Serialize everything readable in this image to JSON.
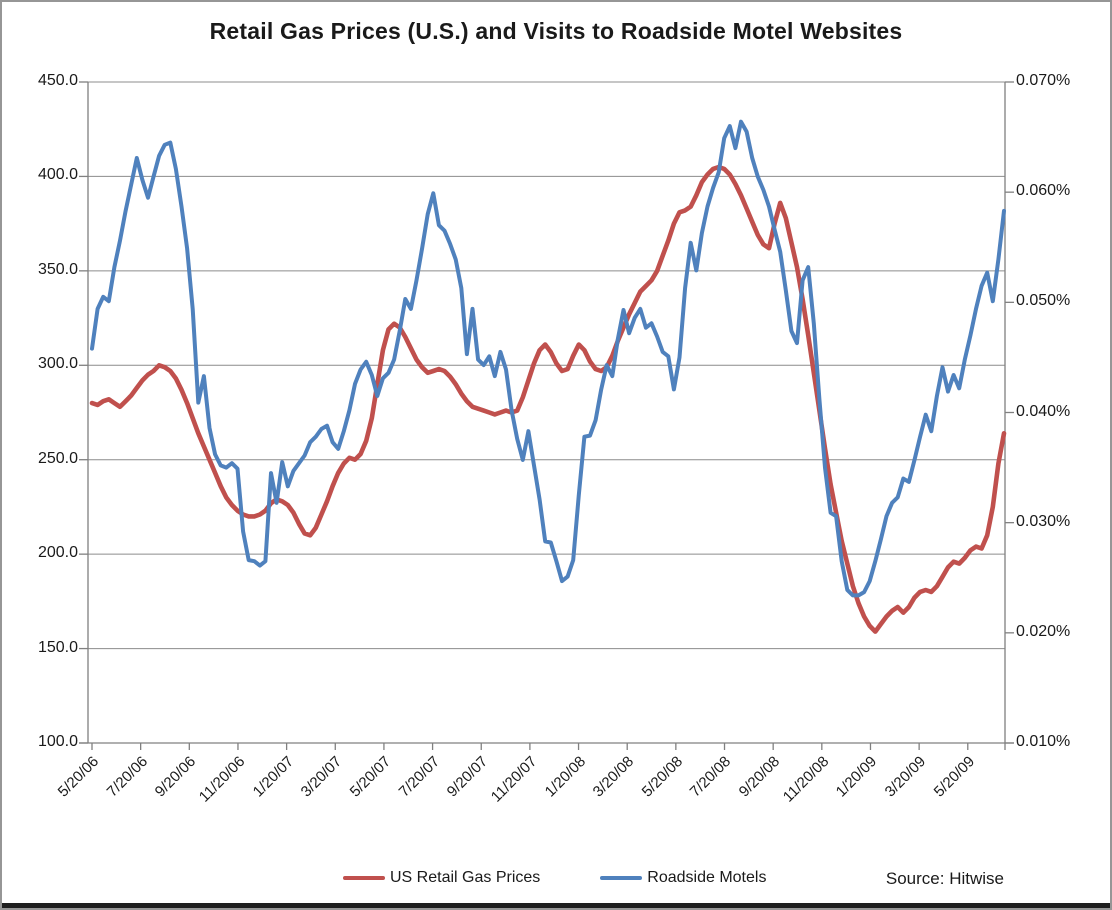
{
  "title": "Retail Gas Prices (U.S.) and Visits to Roadside Motel Websites",
  "source_note": "Source: Hitwise",
  "legend": [
    {
      "label": "US Retail Gas Prices",
      "color": "#C0504D"
    },
    {
      "label": "Roadside Motels",
      "color": "#4F81BD"
    }
  ],
  "chart_data": {
    "type": "line",
    "title": "Retail Gas Prices (U.S.) and Visits to Roadside Motel Websites",
    "source": "Source: Hitwise",
    "legend_position": "bottom",
    "grid": true,
    "gridline_color": "#8C8C8C",
    "axis_color": "#808080",
    "x_axis": {
      "start_label": "5/20/06",
      "frequency": "weekly",
      "tick_labels": [
        "5/20/06",
        "7/20/06",
        "9/20/06",
        "11/20/06",
        "1/20/07",
        "3/20/07",
        "5/20/07",
        "7/20/07",
        "9/20/07",
        "11/20/07",
        "1/20/08",
        "3/20/08",
        "5/20/08",
        "7/20/08",
        "9/20/08",
        "11/20/08",
        "1/20/09",
        "3/20/09",
        "5/20/09"
      ]
    },
    "y_axis_left": {
      "series": "US Retail Gas Prices",
      "min": 100,
      "max": 450,
      "tick_labels": [
        "450.0",
        "400.0",
        "350.0",
        "300.0",
        "250.0",
        "200.0",
        "150.0",
        "100.0"
      ]
    },
    "y_axis_right": {
      "series": "Roadside Motels",
      "unit": "%",
      "min": 0.01,
      "max": 0.07,
      "tick_labels": [
        "0.070%",
        "0.060%",
        "0.050%",
        "0.040%",
        "0.030%",
        "0.020%",
        "0.010%"
      ]
    },
    "series": [
      {
        "name": "US Retail Gas Prices",
        "axis": "left",
        "color": "#C0504D",
        "values": [
          280,
          279,
          281,
          282,
          280,
          278,
          281,
          284,
          288,
          292,
          295,
          297,
          300,
          299,
          297,
          293,
          287,
          280,
          272,
          264,
          257,
          250,
          243,
          236,
          230,
          226,
          223,
          221,
          220,
          220,
          221,
          223,
          227,
          229,
          228,
          226,
          222,
          216,
          211,
          210,
          214,
          221,
          228,
          236,
          243,
          248,
          251,
          250,
          253,
          260,
          272,
          290,
          308,
          319,
          322,
          320,
          315,
          309,
          303,
          299,
          296,
          297,
          298,
          297,
          294,
          290,
          285,
          281,
          278,
          277,
          276,
          275,
          274,
          275,
          276,
          275,
          276,
          283,
          292,
          301,
          308,
          311,
          307,
          301,
          297,
          298,
          305,
          311,
          308,
          302,
          298,
          297,
          299,
          305,
          313,
          320,
          327,
          333,
          339,
          342,
          345,
          350,
          358,
          366,
          375,
          381,
          382,
          384,
          390,
          397,
          401,
          404,
          405,
          404,
          401,
          396,
          390,
          383,
          376,
          369,
          364,
          362,
          375,
          386,
          378,
          365,
          352,
          335,
          316,
          296,
          276,
          256,
          237,
          222,
          207,
          195,
          183,
          174,
          167,
          162,
          159,
          163,
          167,
          170,
          172,
          169,
          172,
          177,
          180,
          181,
          180,
          183,
          188,
          193,
          196,
          195,
          198,
          202,
          204,
          203,
          210,
          225,
          248,
          264
        ]
      },
      {
        "name": "Roadside Motels",
        "axis": "right",
        "color": "#4F81BD",
        "values": [
          0.0458,
          0.0494,
          0.0505,
          0.0501,
          0.0532,
          0.0556,
          0.0583,
          0.0607,
          0.0631,
          0.0611,
          0.0595,
          0.0614,
          0.0633,
          0.0643,
          0.0645,
          0.0621,
          0.0587,
          0.0549,
          0.0494,
          0.0409,
          0.0433,
          0.0386,
          0.0362,
          0.0352,
          0.035,
          0.0354,
          0.0349,
          0.0292,
          0.0266,
          0.0265,
          0.0261,
          0.0265,
          0.0345,
          0.0318,
          0.0355,
          0.0333,
          0.0347,
          0.0354,
          0.0361,
          0.0373,
          0.0378,
          0.0385,
          0.0388,
          0.0373,
          0.0367,
          0.0383,
          0.0402,
          0.0426,
          0.0439,
          0.0446,
          0.0434,
          0.0415,
          0.0431,
          0.0436,
          0.0448,
          0.0474,
          0.0503,
          0.0494,
          0.052,
          0.0549,
          0.058,
          0.0599,
          0.057,
          0.0565,
          0.0553,
          0.0539,
          0.0513,
          0.0453,
          0.0494,
          0.0448,
          0.0443,
          0.0451,
          0.0433,
          0.0455,
          0.0439,
          0.0402,
          0.0376,
          0.0357,
          0.0383,
          0.0352,
          0.0321,
          0.0283,
          0.0282,
          0.0265,
          0.0247,
          0.0251,
          0.0266,
          0.0325,
          0.0378,
          0.0379,
          0.0393,
          0.0421,
          0.0443,
          0.0433,
          0.0467,
          0.0493,
          0.0472,
          0.0486,
          0.0494,
          0.0477,
          0.0481,
          0.0469,
          0.0455,
          0.0451,
          0.0421,
          0.045,
          0.0513,
          0.0554,
          0.0529,
          0.0563,
          0.0587,
          0.0604,
          0.0618,
          0.0649,
          0.066,
          0.064,
          0.0664,
          0.0655,
          0.0631,
          0.0614,
          0.0602,
          0.0587,
          0.0566,
          0.0546,
          0.0511,
          0.0474,
          0.0463,
          0.052,
          0.0532,
          0.0481,
          0.0412,
          0.035,
          0.0309,
          0.0306,
          0.0265,
          0.0239,
          0.0234,
          0.0234,
          0.0237,
          0.0247,
          0.0265,
          0.0285,
          0.0306,
          0.0318,
          0.0323,
          0.034,
          0.0337,
          0.0357,
          0.0378,
          0.0398,
          0.0383,
          0.0415,
          0.0441,
          0.0419,
          0.0434,
          0.0422,
          0.0448,
          0.047,
          0.0494,
          0.0515,
          0.0527,
          0.0501,
          0.0539,
          0.0583
        ]
      }
    ]
  }
}
